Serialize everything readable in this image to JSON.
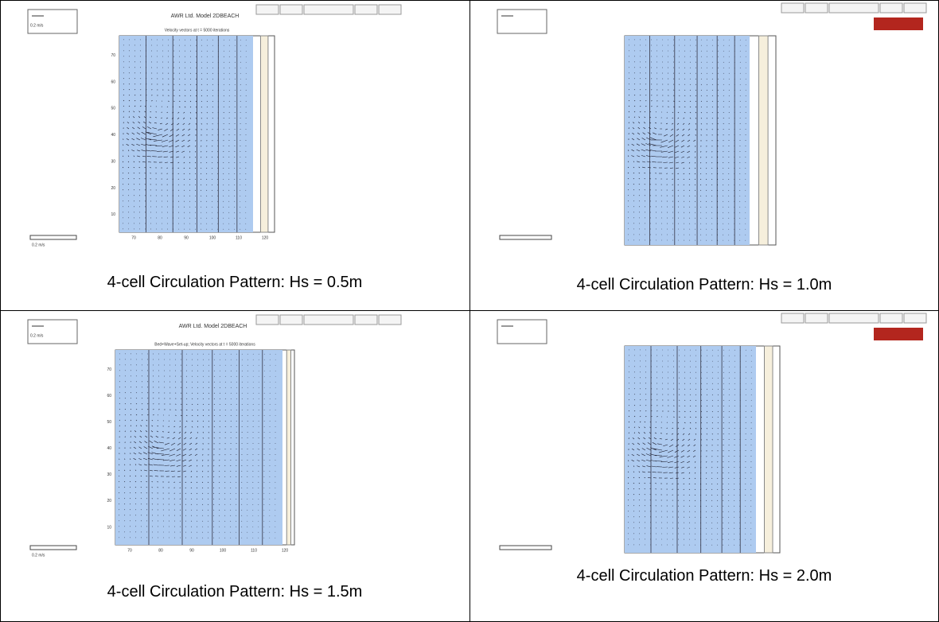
{
  "panels": [
    {
      "caption": "4-cell Circulation Pattern: Hs = 0.5m",
      "title": "AWR Ltd. Model 2DBEACH",
      "subtitle": "Velocity vectors at t = 5000 iterations",
      "scale": "0.2 m/s",
      "yticks": [
        "70",
        "60",
        "50",
        "40",
        "30",
        "20",
        "10"
      ],
      "xticks": [
        "70",
        "80",
        "90",
        "100",
        "110",
        "120"
      ]
    },
    {
      "caption": "4-cell Circulation Pattern: Hs = 1.0m"
    },
    {
      "caption": "4-cell Circulation Pattern: Hs = 1.5m",
      "title": "AWR Ltd. Model 2DBEACH",
      "subtitle": "Bed+Wave+Set-up; Velocity vectors at t = 5000 iterations",
      "scale": "0.2 m/s",
      "yticks": [
        "70",
        "60",
        "50",
        "40",
        "30",
        "20",
        "10"
      ],
      "xticks": [
        "70",
        "80",
        "90",
        "100",
        "110",
        "120"
      ]
    },
    {
      "caption": "4-cell Circulation Pattern: Hs = 2.0m"
    }
  ]
}
